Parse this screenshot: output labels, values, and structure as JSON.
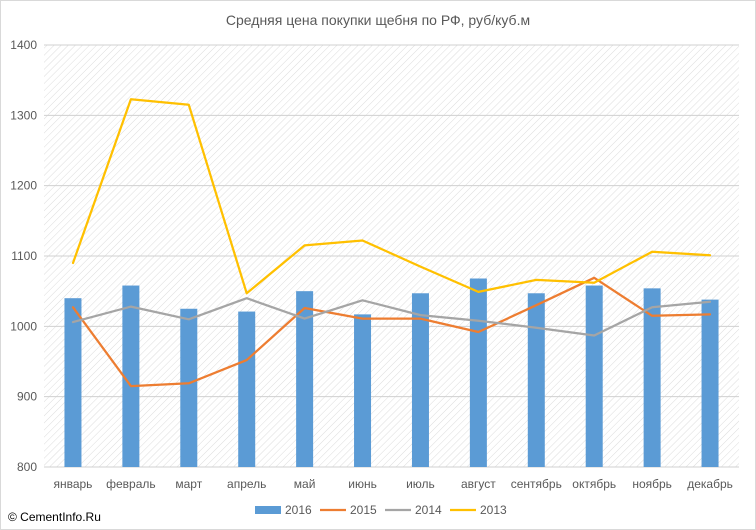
{
  "chart_data": {
    "type": "bar",
    "title": "Средняя цена покупки щебня по РФ, руб/куб.м",
    "xlabel": "",
    "ylabel": "",
    "ylim": [
      800,
      1400
    ],
    "yticks": [
      "800",
      "900",
      "1000",
      "1100",
      "1200",
      "1300",
      "1400"
    ],
    "grid": true,
    "legend_position": "bottom",
    "categories": [
      "январь",
      "февраль",
      "март",
      "апрель",
      "май",
      "июнь",
      "июль",
      "август",
      "сентябрь",
      "октябрь",
      "ноябрь",
      "декабрь"
    ],
    "series": [
      {
        "name": "2016",
        "type": "bar",
        "color": "#5b9bd5",
        "values": [
          1040,
          1058,
          1025,
          1021,
          1050,
          1017,
          1047,
          1068,
          1047,
          1058,
          1054,
          1038
        ]
      },
      {
        "name": "2015",
        "type": "line",
        "color": "#ed7d31",
        "values": [
          1027,
          915,
          919,
          952,
          1026,
          1011,
          1011,
          992,
          1030,
          1069,
          1015,
          1017
        ]
      },
      {
        "name": "2014",
        "type": "line",
        "color": "#a5a5a5",
        "values": [
          1006,
          1028,
          1010,
          1040,
          1011,
          1037,
          1016,
          1008,
          998,
          987,
          1027,
          1035
        ]
      },
      {
        "name": "2013",
        "type": "line",
        "color": "#ffc000",
        "values": [
          1090,
          1323,
          1315,
          1047,
          1115,
          1122,
          1085,
          1049,
          1066,
          1062,
          1106,
          1101
        ]
      }
    ]
  },
  "watermark": "© CementInfo.Ru"
}
